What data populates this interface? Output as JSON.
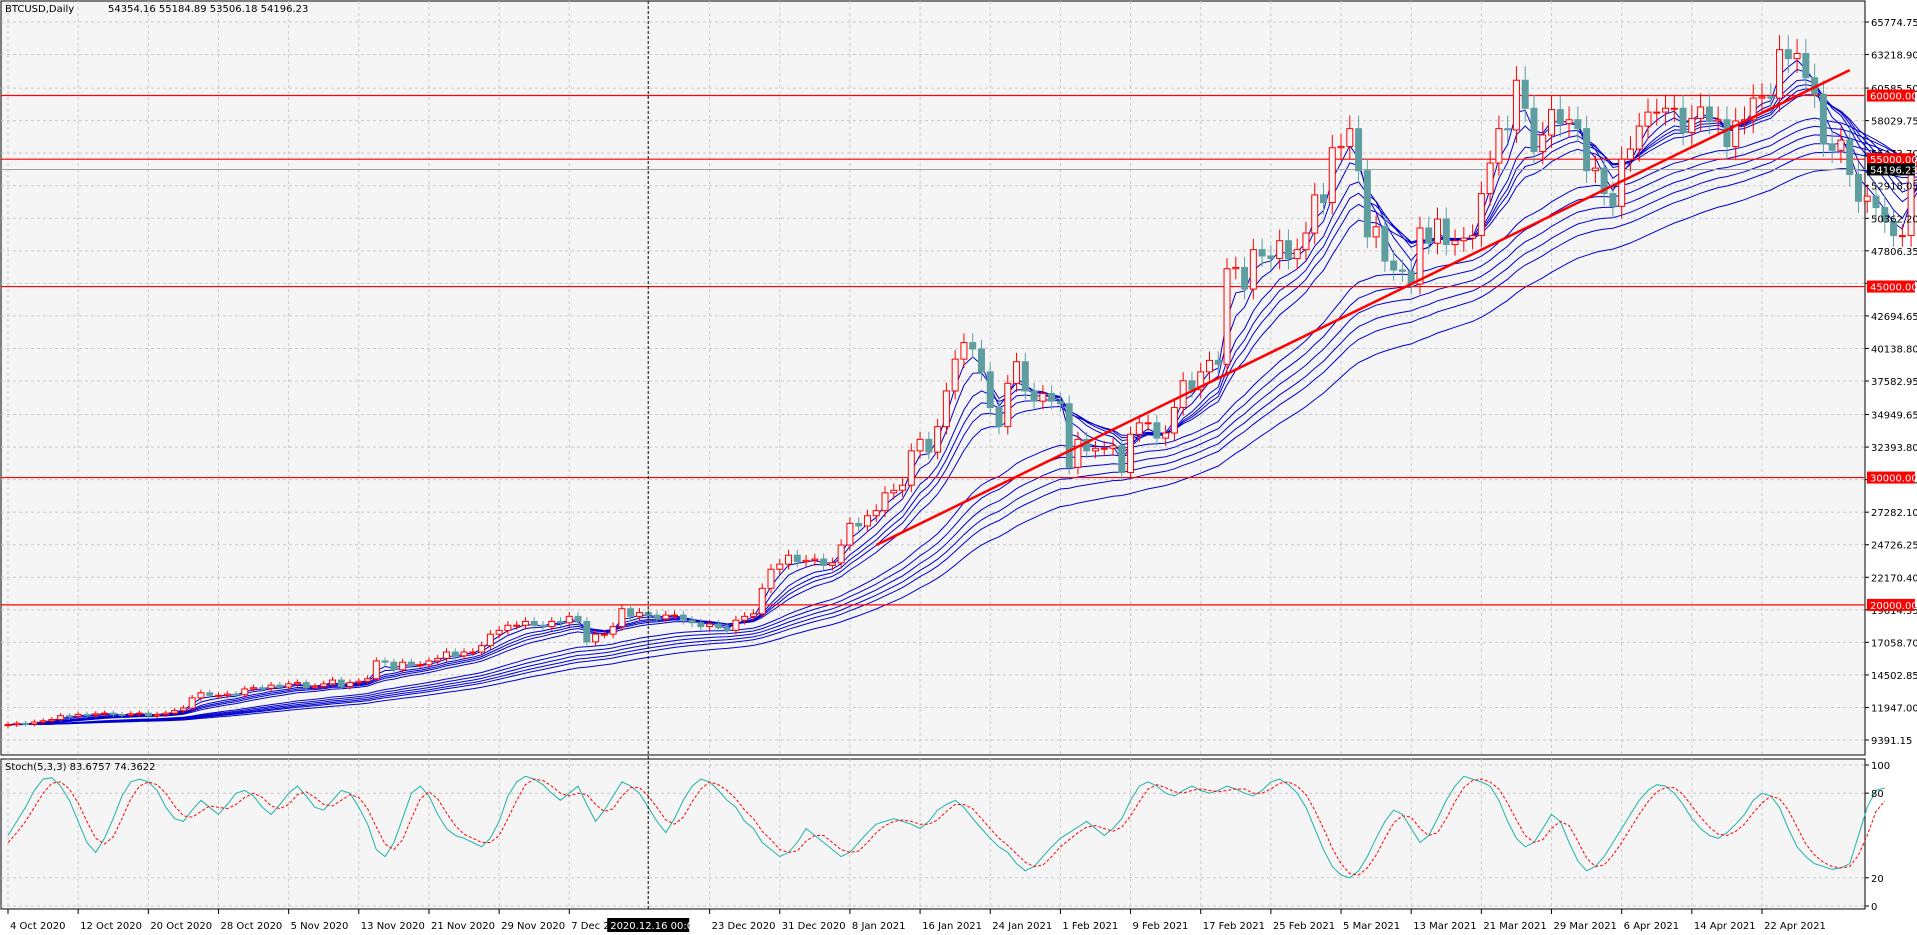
{
  "header": {
    "symbol_info": "BTCUSD,Daily",
    "ohlc": "54354.16 55184.89 53506.18 54196.23"
  },
  "crosshair_time_label": "2020.12.16 00:00",
  "colors": {
    "bull": "#ff0000",
    "bear": "#5f9ea0",
    "ribbon": "#0000cc",
    "levels": "#ff0000",
    "stoch_main": "#20b2aa",
    "stoch_signal": "#ff0000",
    "grid": "#c8c8c8",
    "background": "#f5f5f5"
  },
  "chart_data": [
    {
      "type": "candlestick",
      "title": "BTCUSD,Daily",
      "y_ticks": [
        "65774.75",
        "63218.90",
        "60585.50",
        "58029.75",
        "55473.70",
        "52918.05",
        "50362.20",
        "47806.35",
        "45250.50",
        "42694.65",
        "40138.80",
        "37582.95",
        "34949.65",
        "32393.80",
        "29838.00",
        "27282.10",
        "24726.25",
        "22170.40",
        "19614.55",
        "17058.70",
        "14502.85",
        "11947.00",
        "9391.15"
      ],
      "y_min": 9391.15,
      "y_max": 65774.75,
      "grid": true,
      "x_labels": [
        "4 Oct 2020",
        "12 Oct 2020",
        "20 Oct 2020",
        "28 Oct 2020",
        "5 Nov 2020",
        "13 Nov 2020",
        "21 Nov 2020",
        "29 Nov 2020",
        "7 Dec 2020",
        "23 Dec 2020",
        "31 Dec 2020",
        "8 Jan 2021",
        "16 Jan 2021",
        "24 Jan 2021",
        "1 Feb 2021",
        "9 Feb 2021",
        "17 Feb 2021",
        "25 Feb 2021",
        "5 Mar 2021",
        "13 Mar 2021",
        "21 Mar 2021",
        "29 Mar 2021",
        "6 Apr 2021",
        "14 Apr 2021",
        "22 Apr 2021"
      ],
      "start_date": "2020-10-04",
      "closes": [
        10600,
        10700,
        10650,
        10800,
        10900,
        11000,
        11300,
        11250,
        11400,
        11350,
        11450,
        11500,
        11400,
        11350,
        11450,
        11500,
        11300,
        11400,
        11500,
        11700,
        11900,
        12700,
        13100,
        12900,
        12900,
        13000,
        12950,
        13400,
        13500,
        13450,
        13700,
        13550,
        13800,
        13900,
        13500,
        13600,
        13800,
        14100,
        13600,
        13900,
        14000,
        14200,
        15600,
        15500,
        14900,
        15500,
        15300,
        15300,
        15600,
        15800,
        16300,
        16000,
        16300,
        16300,
        16800,
        17700,
        18000,
        18400,
        18400,
        18700,
        18400,
        18300,
        18700,
        18600,
        19100,
        18700,
        17100,
        17700,
        17700,
        18300,
        19700,
        19100,
        19400,
        19200,
        18900,
        19200,
        19200,
        18800,
        18600,
        18300,
        18500,
        18200,
        18000,
        18800,
        19100,
        19300,
        21300,
        22800,
        23200,
        23900,
        23400,
        23500,
        23600,
        23100,
        23300,
        24700,
        26400,
        26200,
        27000,
        27400,
        28800,
        29000,
        29400,
        32100,
        33000,
        32000,
        34000,
        36800,
        39300,
        40600,
        40100,
        38300,
        35500,
        34000,
        37400,
        39100,
        36800,
        36000,
        36600,
        36000,
        35800,
        30800,
        33000,
        32100,
        32300,
        32300,
        32500,
        30400,
        33400,
        34300,
        34300,
        33100,
        33500,
        35500,
        37600,
        36900,
        38300,
        39200,
        38900,
        46400,
        46500,
        44800,
        47900,
        47400,
        47200,
        48600,
        47200,
        47900,
        49200,
        52200,
        51600,
        55900,
        56000,
        57400,
        54100,
        48900,
        49700,
        47000,
        46300,
        46200,
        45200,
        49600,
        48400,
        50300,
        48300,
        48600,
        48800,
        49000,
        52300,
        54700,
        57400,
        57300,
        61200,
        59000,
        55600,
        56900,
        58900,
        57800,
        58100,
        57400,
        54100,
        54300,
        52300,
        51300,
        55000,
        55800,
        57600,
        58700,
        58700,
        59000,
        59000,
        57100,
        58200,
        59100,
        58000,
        58100,
        56000,
        58000,
        58100,
        59800,
        59900,
        59800,
        63600,
        62900,
        63300,
        61400,
        60100,
        56200,
        55700,
        56500,
        53800,
        51700,
        52100,
        51200,
        50100,
        49000,
        49000,
        54000,
        55100,
        54196
      ],
      "horizontal_levels": [
        {
          "price": 60000.0,
          "label": "60000.00"
        },
        {
          "price": 55000.0,
          "label": "55000.00"
        },
        {
          "price": 45000.0,
          "label": "45000.00"
        },
        {
          "price": 30000.0,
          "label": "30000.00"
        },
        {
          "price": 20000.0,
          "label": "20000.00"
        }
      ],
      "current_price": {
        "price": 54196.23,
        "label": "54196.23"
      },
      "trendline": {
        "from": {
          "date": "2021-01-11",
          "price": 24700
        },
        "to": {
          "date": "2021-05-02",
          "price": 62000
        }
      },
      "crosshair_date": "2020-12-16"
    },
    {
      "type": "line",
      "title": "Stoch(5,3,3) 83.6757 74.3622",
      "y_min": 0,
      "y_max": 100,
      "y_ticks": [
        "100",
        "80",
        "20",
        "0"
      ],
      "series": [
        {
          "name": "Stoch main",
          "values": [
            50,
            60,
            70,
            82,
            90,
            91,
            85,
            75,
            60,
            45,
            38,
            48,
            62,
            78,
            88,
            90,
            88,
            82,
            70,
            62,
            60,
            68,
            75,
            70,
            65,
            72,
            80,
            82,
            78,
            70,
            65,
            72,
            80,
            85,
            78,
            70,
            68,
            75,
            82,
            80,
            70,
            58,
            40,
            35,
            45,
            62,
            80,
            85,
            78,
            65,
            55,
            50,
            48,
            45,
            42,
            48,
            60,
            78,
            88,
            92,
            90,
            86,
            80,
            75,
            80,
            85,
            72,
            60,
            68,
            78,
            88,
            85,
            80,
            70,
            60,
            52,
            62,
            75,
            85,
            90,
            88,
            82,
            75,
            70,
            60,
            55,
            45,
            40,
            35,
            38,
            45,
            55,
            50,
            45,
            40,
            35,
            38,
            45,
            52,
            58,
            60,
            62,
            60,
            58,
            55,
            60,
            68,
            72,
            75,
            70,
            62,
            55,
            48,
            42,
            38,
            30,
            25,
            28,
            35,
            42,
            48,
            52,
            56,
            60,
            55,
            50,
            55,
            62,
            75,
            85,
            88,
            85,
            80,
            78,
            82,
            85,
            82,
            80,
            82,
            85,
            83,
            80,
            78,
            82,
            88,
            90,
            86,
            80,
            70,
            55,
            40,
            28,
            22,
            20,
            25,
            35,
            48,
            60,
            68,
            65,
            55,
            45,
            50,
            62,
            75,
            85,
            92,
            90,
            88,
            85,
            75,
            60,
            48,
            42,
            45,
            55,
            65,
            60,
            45,
            32,
            25,
            28,
            35,
            45,
            55,
            65,
            75,
            82,
            86,
            85,
            80,
            72,
            62,
            55,
            50,
            48,
            52,
            58,
            65,
            75,
            80,
            78,
            70,
            55,
            42,
            35,
            30,
            28,
            26,
            27,
            30,
            50,
            70,
            82,
            83.6757
          ]
        },
        {
          "name": "Stoch signal",
          "values": [
            45,
            52,
            60,
            70,
            80,
            87,
            88,
            83,
            73,
            60,
            48,
            44,
            49,
            62,
            76,
            85,
            88,
            86,
            80,
            71,
            64,
            63,
            67,
            71,
            70,
            69,
            72,
            77,
            80,
            77,
            71,
            69,
            72,
            79,
            81,
            77,
            72,
            71,
            75,
            79,
            77,
            69,
            56,
            44,
            40,
            47,
            62,
            76,
            81,
            76,
            66,
            57,
            51,
            48,
            45,
            45,
            50,
            62,
            75,
            86,
            90,
            89,
            85,
            80,
            78,
            80,
            79,
            72,
            67,
            69,
            78,
            84,
            84,
            78,
            70,
            61,
            58,
            63,
            74,
            83,
            88,
            86,
            82,
            76,
            68,
            62,
            53,
            47,
            40,
            38,
            39,
            46,
            50,
            50,
            45,
            40,
            38,
            39,
            45,
            52,
            57,
            60,
            61,
            60,
            58,
            58,
            61,
            67,
            72,
            72,
            69,
            62,
            55,
            48,
            43,
            37,
            31,
            28,
            29,
            35,
            42,
            47,
            52,
            56,
            57,
            55,
            53,
            56,
            64,
            74,
            83,
            86,
            84,
            81,
            80,
            82,
            83,
            82,
            81,
            82,
            83,
            83,
            80,
            80,
            83,
            87,
            88,
            85,
            79,
            68,
            55,
            41,
            30,
            23,
            22,
            27,
            36,
            48,
            59,
            64,
            63,
            55,
            50,
            52,
            62,
            74,
            84,
            89,
            90,
            88,
            83,
            73,
            61,
            50,
            45,
            47,
            55,
            60,
            57,
            46,
            34,
            28,
            29,
            36,
            45,
            55,
            65,
            74,
            81,
            84,
            84,
            79,
            71,
            63,
            56,
            51,
            50,
            53,
            58,
            66,
            73,
            78,
            76,
            68,
            56,
            44,
            36,
            31,
            28,
            27,
            28,
            36,
            50,
            67,
            74.3622
          ]
        }
      ]
    }
  ]
}
